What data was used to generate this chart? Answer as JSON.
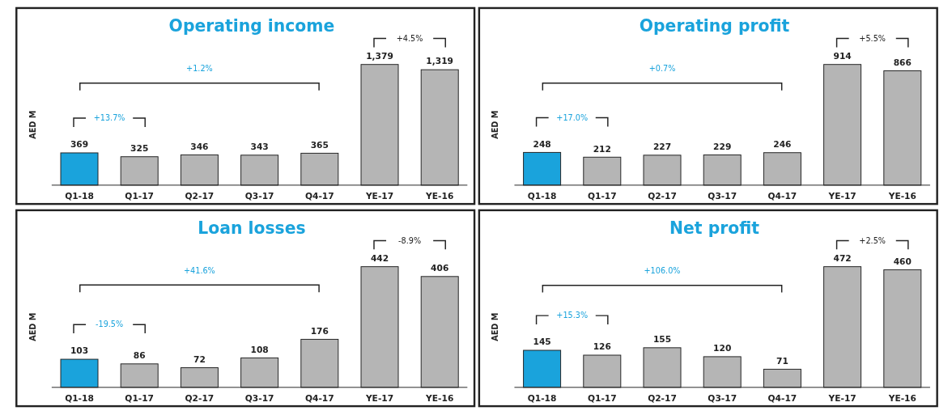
{
  "chart_data": [
    {
      "type": "bar",
      "title": "Operating income",
      "ylabel": "AED M",
      "categories": [
        "Q1-18",
        "Q1-17",
        "Q2-17",
        "Q3-17",
        "Q4-17",
        "YE-17",
        "YE-16"
      ],
      "values": [
        369,
        325,
        346,
        343,
        365,
        1379,
        1319
      ],
      "colors": [
        "#1aa3dc",
        "#b5b5b5",
        "#b5b5b5",
        "#b5b5b5",
        "#b5b5b5",
        "#b5b5b5",
        "#b5b5b5"
      ],
      "value_labels": [
        "369",
        "325",
        "346",
        "343",
        "365",
        "1,379",
        "1,319"
      ],
      "annotations": [
        "+4.5%",
        "+1.2%",
        "+13.7%"
      ]
    },
    {
      "type": "bar",
      "title": "Operating profit",
      "ylabel": "AED M",
      "categories": [
        "Q1-18",
        "Q1-17",
        "Q2-17",
        "Q3-17",
        "Q4-17",
        "YE-17",
        "YE-16"
      ],
      "values": [
        248,
        212,
        227,
        229,
        246,
        914,
        866
      ],
      "colors": [
        "#1aa3dc",
        "#b5b5b5",
        "#b5b5b5",
        "#b5b5b5",
        "#b5b5b5",
        "#b5b5b5",
        "#b5b5b5"
      ],
      "data_labels": true,
      "annotations": [
        "+5.5%",
        "+0.7%",
        "+17.0%"
      ]
    },
    {
      "type": "bar",
      "title": "Loan losses",
      "ylabel": "AED M",
      "categories": [
        "Q1-18",
        "Q1-17",
        "Q2-17",
        "Q3-17",
        "Q4-17",
        "YE-17",
        "YE-16"
      ],
      "values": [
        103,
        86,
        72,
        108,
        176,
        442,
        406
      ],
      "colors": [
        "#1aa3dc",
        "#b5b5b5",
        "#b5b5b5",
        "#b5b5b5",
        "#b5b5b5",
        "#b5b5b5",
        "#b5b5b5"
      ],
      "data_labels": true,
      "annotations": [
        "-8.9%",
        "+41.6%",
        "-19.5%"
      ]
    },
    {
      "type": "bar",
      "title": "Net profit",
      "ylabel": "AED M",
      "categories": [
        "Q1-18",
        "Q1-17",
        "Q2-17",
        "Q3-17",
        "Q4-17",
        "YE-17",
        "YE-16"
      ],
      "values": [
        145,
        126,
        155,
        120,
        71,
        472,
        460
      ],
      "colors": [
        "#1aa3dc",
        "#b5b5b5",
        "#b5b5b5",
        "#b5b5b5",
        "#b5b5b5",
        "#b5b5b5",
        "#b5b5b5"
      ],
      "data_labels": true,
      "annotations": [
        "+2.5%",
        "+106.0%",
        "+15.3%"
      ]
    }
  ]
}
